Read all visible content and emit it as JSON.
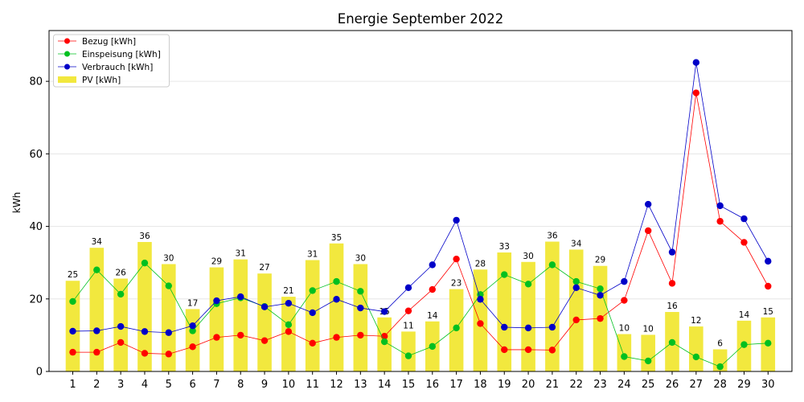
{
  "chart_data": {
    "type": "bar",
    "title": "Energie September 2022",
    "xlabel": "",
    "ylabel": "kWh",
    "ylim": [
      0,
      94
    ],
    "yticks": [
      0,
      20,
      40,
      60,
      80
    ],
    "categories": [
      "1",
      "2",
      "3",
      "4",
      "5",
      "6",
      "7",
      "8",
      "9",
      "10",
      "11",
      "12",
      "13",
      "14",
      "15",
      "16",
      "17",
      "18",
      "19",
      "20",
      "21",
      "22",
      "23",
      "24",
      "25",
      "26",
      "27",
      "28",
      "29",
      "30"
    ],
    "grid": "horizontal",
    "legend_position": "top-left",
    "bar_series": {
      "name": "PV [kWh]",
      "color": "#f2e83e",
      "values": [
        25.0,
        34.1,
        25.6,
        35.7,
        29.6,
        17.2,
        28.7,
        30.9,
        27.0,
        20.6,
        30.7,
        35.3,
        29.6,
        14.9,
        11.0,
        13.8,
        22.7,
        28.1,
        32.8,
        30.2,
        35.8,
        33.6,
        29.1,
        10.3,
        10.1,
        16.4,
        12.4,
        6.1,
        14.0,
        14.9
      ],
      "labels": [
        "25",
        "34",
        "26",
        "36",
        "30",
        "17",
        "29",
        "31",
        "27",
        "21",
        "31",
        "35",
        "30",
        "15",
        "11",
        "14",
        "23",
        "28",
        "33",
        "30",
        "36",
        "34",
        "29",
        "10",
        "10",
        "16",
        "12",
        "6",
        "14",
        "15"
      ]
    },
    "series": [
      {
        "name": "Bezug [kWh]",
        "color": "#ff0000",
        "values": [
          5.3,
          5.3,
          8.0,
          5.0,
          4.8,
          6.8,
          9.4,
          10.0,
          8.5,
          11.0,
          7.8,
          9.4,
          10.0,
          9.7,
          16.7,
          22.6,
          31.0,
          13.2,
          6.0,
          6.0,
          5.9,
          14.2,
          14.6,
          19.6,
          38.8,
          24.3,
          76.8,
          41.4,
          35.6,
          23.5
        ]
      },
      {
        "name": "Einspeisung [kWh]",
        "color": "#00c020",
        "values": [
          19.3,
          28.0,
          21.3,
          29.9,
          23.6,
          11.2,
          18.7,
          20.3,
          17.9,
          12.9,
          22.3,
          24.8,
          22.1,
          8.2,
          4.3,
          6.9,
          12.0,
          21.2,
          26.7,
          24.1,
          29.4,
          24.8,
          22.8,
          4.1,
          2.9,
          8.0,
          4.0,
          1.3,
          7.4,
          7.8
        ]
      },
      {
        "name": "Verbrauch [kWh]",
        "color": "#0000c8",
        "values": [
          11.1,
          11.2,
          12.4,
          11.0,
          10.7,
          12.6,
          19.5,
          20.6,
          17.8,
          18.8,
          16.2,
          19.9,
          17.5,
          16.5,
          23.1,
          29.4,
          41.7,
          19.9,
          12.2,
          12.0,
          12.2,
          23.1,
          21.0,
          24.8,
          46.1,
          32.9,
          85.2,
          45.7,
          42.1,
          30.4
        ]
      }
    ]
  }
}
